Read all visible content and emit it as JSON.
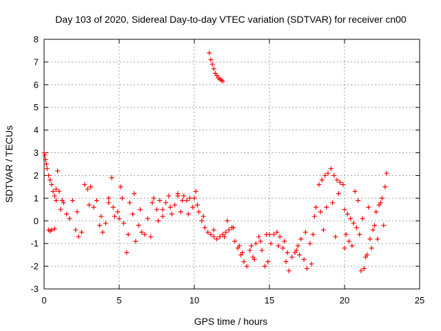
{
  "chart_data": {
    "type": "scatter",
    "title": "Day 103 of 2020, Sidereal Day-to-day VTEC variation (SDTVAR) for receiver cn00",
    "xlabel": "GPS time / hours",
    "ylabel": "SDTVAR / TECUs",
    "xlim": [
      0,
      25
    ],
    "ylim": [
      -3,
      8
    ],
    "xticks": [
      "0",
      "5",
      "10",
      "15",
      "20",
      "25"
    ],
    "yticks": [
      "-3",
      "-2",
      "-1",
      "0",
      "1",
      "2",
      "3",
      "4",
      "5",
      "6",
      "7",
      "8"
    ],
    "grid": true,
    "marker": "+",
    "color": "#ff0000",
    "series": [
      {
        "name": "SDTVAR",
        "x": [
          0.0,
          0.05,
          0.1,
          0.15,
          0.2,
          0.3,
          0.4,
          0.5,
          0.6,
          0.7,
          0.8,
          0.3,
          0.4,
          0.5,
          0.7,
          0.9,
          1.0,
          1.1,
          1.3,
          1.5,
          1.7,
          1.9,
          2.1,
          2.3,
          2.5,
          2.7,
          2.9,
          3.1,
          3.3,
          3.5,
          3.7,
          3.9,
          4.1,
          4.3,
          4.5,
          4.7,
          4.9,
          5.1,
          5.3,
          5.5,
          5.7,
          5.9,
          6.1,
          6.3,
          6.5,
          6.7,
          6.9,
          7.1,
          7.3,
          7.5,
          7.7,
          7.9,
          8.1,
          8.3,
          8.5,
          8.7,
          8.9,
          9.1,
          9.3,
          9.5,
          9.7,
          9.9,
          10.1,
          10.3,
          10.5,
          10.7,
          10.9,
          11.1,
          11.3,
          11.5,
          11.7,
          11.9,
          12.1,
          12.3,
          12.5,
          12.7,
          12.9,
          13.1,
          13.3,
          13.5,
          13.7,
          13.9,
          14.1,
          14.3,
          14.5,
          14.7,
          14.9,
          15.1,
          15.3,
          15.5,
          15.7,
          15.9,
          16.1,
          16.3,
          16.5,
          16.7,
          16.9,
          17.1,
          17.3,
          17.5,
          17.7,
          17.9,
          18.1,
          18.3,
          18.5,
          18.7,
          18.9,
          19.1,
          19.3,
          19.5,
          19.7,
          19.9,
          20.1,
          20.3,
          20.5,
          20.7,
          20.9,
          21.1,
          21.3,
          21.5,
          21.7,
          21.9,
          22.1,
          22.3,
          22.5,
          22.7,
          22.8,
          11.0,
          11.1,
          11.2,
          11.3,
          11.4,
          11.5,
          11.6,
          11.7,
          11.8,
          11.9,
          4.3,
          4.6,
          5.2,
          5.6,
          6.0,
          7.2,
          7.9,
          8.9,
          9.6,
          10.2,
          10.6,
          11.3,
          12.0,
          12.6,
          13.2,
          13.8,
          14.4,
          15.0,
          15.6,
          16.2,
          16.8,
          17.4,
          18.0,
          18.4,
          18.8,
          19.2,
          19.6,
          20.0,
          20.2,
          20.4,
          20.6,
          20.8,
          21.0,
          21.4,
          21.8,
          22.2,
          22.6,
          0.8,
          1.2,
          2.2,
          3.0,
          3.8,
          5.0,
          6.4,
          7.6,
          8.4,
          9.2,
          10.0,
          12.2,
          13.0,
          14.0,
          14.8,
          16.0,
          17.0,
          17.8,
          18.6,
          19.4,
          20.0,
          21.2,
          21.6,
          22.0,
          22.4
        ],
        "y": [
          3.0,
          2.9,
          2.7,
          2.5,
          2.3,
          2.0,
          1.8,
          1.6,
          1.3,
          1.1,
          0.9,
          -0.4,
          -0.45,
          -0.4,
          -0.35,
          2.2,
          1.3,
          0.5,
          0.8,
          0.3,
          0.1,
          0.9,
          -0.4,
          -0.7,
          -0.5,
          1.6,
          1.4,
          1.5,
          0.6,
          0.9,
          -0.2,
          -0.5,
          -0.1,
          0.8,
          1.9,
          0.2,
          0.4,
          1.5,
          -0.1,
          -1.4,
          0.8,
          0.3,
          -0.9,
          -0.2,
          -0.5,
          -0.6,
          0.1,
          -0.7,
          1.0,
          0.5,
          0.9,
          0.2,
          0.8,
          1.1,
          0.3,
          0.7,
          1.2,
          0.4,
          1.1,
          0.9,
          1.0,
          0.6,
          1.3,
          0.4,
          0.0,
          -0.3,
          -0.5,
          -0.6,
          -0.7,
          -0.8,
          -0.7,
          -0.6,
          -0.5,
          -0.4,
          -0.3,
          -0.9,
          -1.2,
          -1.5,
          -1.8,
          -2.0,
          -1.3,
          -1.6,
          -1.0,
          -0.7,
          -1.3,
          -2.0,
          -1.8,
          -1.0,
          -0.6,
          -0.5,
          -0.7,
          -1.2,
          -1.8,
          -2.2,
          -1.6,
          -1.4,
          -1.1,
          -0.8,
          -1.7,
          -2.1,
          -1.0,
          -0.6,
          0.6,
          1.6,
          1.8,
          2.0,
          2.1,
          2.3,
          2.0,
          1.8,
          1.7,
          1.6,
          -0.6,
          -0.9,
          -1.1,
          1.3,
          0.9,
          -2.2,
          -2.1,
          -1.5,
          -0.8,
          -0.4,
          0.4,
          0.7,
          1.0,
          1.5,
          2.1,
          7.4,
          7.1,
          6.9,
          6.7,
          6.5,
          6.4,
          6.3,
          6.25,
          6.2,
          6.15,
          1.0,
          0.6,
          1.0,
          -0.6,
          1.2,
          0.8,
          0.5,
          1.1,
          0.3,
          0.7,
          0.2,
          -0.4,
          -0.7,
          -0.3,
          -1.4,
          -1.1,
          -0.9,
          -0.6,
          -1.1,
          -1.4,
          -1.3,
          -0.5,
          0.2,
          0.4,
          0.6,
          0.8,
          1.2,
          0.5,
          0.3,
          0.1,
          -0.1,
          -0.3,
          -0.6,
          -1.6,
          -1.2,
          -0.8,
          -0.2,
          1.4,
          0.9,
          0.4,
          0.7,
          0.2,
          0.1,
          0.5,
          0.0,
          0.6,
          0.9,
          1.0,
          0.0,
          -1.1,
          -1.7,
          -0.6,
          -0.9,
          -1.5,
          -1.9,
          -0.4,
          -0.7,
          -1.2,
          0.1,
          0.6,
          -0.2,
          0.8
        ]
      }
    ]
  }
}
